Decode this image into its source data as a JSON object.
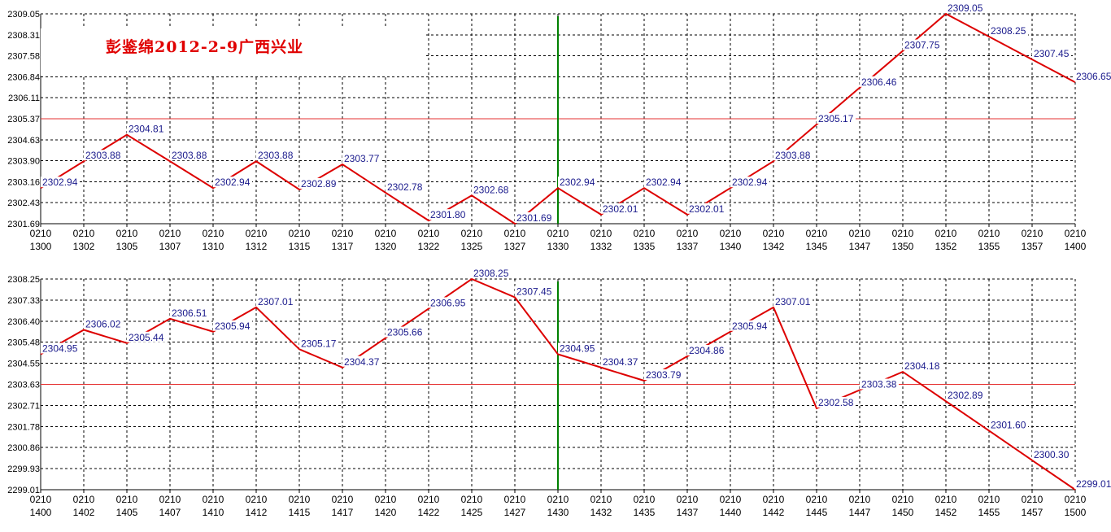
{
  "title": "彭鉴绵2012-2-9广西兴业",
  "colors": {
    "series": "#dd0000",
    "labels": "#1a1a8c",
    "grid": "#000000",
    "reference": "#e53030",
    "marker": "#008000"
  },
  "chart_data": [
    {
      "type": "line",
      "x": [
        "0210 1300",
        "0210 1302",
        "0210 1305",
        "0210 1307",
        "0210 1310",
        "0210 1312",
        "0210 1315",
        "0210 1317",
        "0210 1320",
        "0210 1322",
        "0210 1325",
        "0210 1327",
        "0210 1330",
        "0210 1332",
        "0210 1335",
        "0210 1337",
        "0210 1340",
        "0210 1342",
        "0210 1345",
        "0210 1347",
        "0210 1350",
        "0210 1352",
        "0210 1355",
        "0210 1357",
        "0210 1400"
      ],
      "y_ticks": [
        "2309.05",
        "2308.31",
        "2307.58",
        "2306.84",
        "2306.11",
        "2305.37",
        "2304.63",
        "2303.90",
        "2303.16",
        "2302.43",
        "2301.69"
      ],
      "ylim": [
        2301.69,
        2309.05
      ],
      "points": [
        {
          "x": "0210 1300",
          "y": 2302.94,
          "label": "2302.94"
        },
        {
          "x": "0210 1302",
          "y": 2303.88,
          "label": "2303.88"
        },
        {
          "x": "0210 1305",
          "y": 2304.81,
          "label": "2304.81"
        },
        {
          "x": "0210 1307",
          "y": 2303.88,
          "label": "2303.88"
        },
        {
          "x": "0210 1310",
          "y": 2302.94,
          "label": "2302.94"
        },
        {
          "x": "0210 1312",
          "y": 2303.88,
          "label": "2303.88"
        },
        {
          "x": "0210 1315",
          "y": 2302.89,
          "label": "2302.89"
        },
        {
          "x": "0210 1317",
          "y": 2303.77,
          "label": "2303.77"
        },
        {
          "x": "0210 1320",
          "y": 2302.78,
          "label": "2302.78"
        },
        {
          "x": "0210 1322",
          "y": 2301.8,
          "label": "2301.80"
        },
        {
          "x": "0210 1325",
          "y": 2302.68,
          "label": "2302.68"
        },
        {
          "x": "0210 1327",
          "y": 2301.69,
          "label": "2301.69"
        },
        {
          "x": "0210 1330",
          "y": 2302.94,
          "label": "2302.94"
        },
        {
          "x": "0210 1332",
          "y": 2302.01,
          "label": "2302.01"
        },
        {
          "x": "0210 1335",
          "y": 2302.94,
          "label": "2302.94"
        },
        {
          "x": "0210 1337",
          "y": 2302.01,
          "label": "2302.01"
        },
        {
          "x": "0210 1340",
          "y": 2302.94,
          "label": "2302.94"
        },
        {
          "x": "0210 1342",
          "y": 2303.88,
          "label": "2303.88"
        },
        {
          "x": "0210 1345",
          "y": 2305.17,
          "label": "2305.17"
        },
        {
          "x": "0210 1347",
          "y": 2306.46,
          "label": "2306.46"
        },
        {
          "x": "0210 1350",
          "y": 2307.75,
          "label": "2307.75"
        },
        {
          "x": "0210 1352",
          "y": 2309.05,
          "label": "2309.05"
        },
        {
          "x": "0210 1355",
          "y": 2308.25,
          "label": "2308.25"
        },
        {
          "x": "0210 1357",
          "y": 2307.45,
          "label": "2307.45"
        },
        {
          "x": "0210 1400",
          "y": 2306.65,
          "label": "2306.65"
        }
      ],
      "reference_line_y": 2305.37,
      "marker_x": "0210 1330",
      "grid": true
    },
    {
      "type": "line",
      "x": [
        "0210 1400",
        "0210 1402",
        "0210 1405",
        "0210 1407",
        "0210 1410",
        "0210 1412",
        "0210 1415",
        "0210 1417",
        "0210 1420",
        "0210 1422",
        "0210 1425",
        "0210 1427",
        "0210 1430",
        "0210 1432",
        "0210 1435",
        "0210 1437",
        "0210 1440",
        "0210 1442",
        "0210 1445",
        "0210 1447",
        "0210 1450",
        "0210 1452",
        "0210 1455",
        "0210 1457",
        "0210 1500"
      ],
      "y_ticks": [
        "2308.25",
        "2307.33",
        "2306.40",
        "2305.48",
        "2304.55",
        "2303.63",
        "2302.71",
        "2301.78",
        "2300.86",
        "2299.93",
        "2299.01"
      ],
      "ylim": [
        2299.01,
        2308.25
      ],
      "points": [
        {
          "x": "0210 1400",
          "y": 2304.95,
          "label": "2304.95"
        },
        {
          "x": "0210 1402",
          "y": 2306.02,
          "label": "2306.02"
        },
        {
          "x": "0210 1405",
          "y": 2305.44,
          "label": "2305.44"
        },
        {
          "x": "0210 1407",
          "y": 2306.51,
          "label": "2306.51"
        },
        {
          "x": "0210 1410",
          "y": 2305.94,
          "label": "2305.94"
        },
        {
          "x": "0210 1412",
          "y": 2307.01,
          "label": "2307.01"
        },
        {
          "x": "0210 1415",
          "y": 2305.17,
          "label": "2305.17"
        },
        {
          "x": "0210 1417",
          "y": 2304.37,
          "label": "2304.37"
        },
        {
          "x": "0210 1420",
          "y": 2305.66,
          "label": "2305.66"
        },
        {
          "x": "0210 1422",
          "y": 2306.95,
          "label": "2306.95"
        },
        {
          "x": "0210 1425",
          "y": 2308.25,
          "label": "2308.25"
        },
        {
          "x": "0210 1427",
          "y": 2307.45,
          "label": "2307.45"
        },
        {
          "x": "0210 1430",
          "y": 2304.95,
          "label": "2304.95"
        },
        {
          "x": "0210 1432",
          "y": 2304.37,
          "label": "2304.37"
        },
        {
          "x": "0210 1435",
          "y": 2303.79,
          "label": "2303.79"
        },
        {
          "x": "0210 1437",
          "y": 2304.86,
          "label": "2304.86"
        },
        {
          "x": "0210 1440",
          "y": 2305.94,
          "label": "2305.94"
        },
        {
          "x": "0210 1442",
          "y": 2307.01,
          "label": "2307.01"
        },
        {
          "x": "0210 1445",
          "y": 2302.58,
          "label": "2302.58"
        },
        {
          "x": "0210 1447",
          "y": 2303.38,
          "label": "2303.38"
        },
        {
          "x": "0210 1450",
          "y": 2304.18,
          "label": "2304.18"
        },
        {
          "x": "0210 1452",
          "y": 2302.89,
          "label": "2302.89"
        },
        {
          "x": "0210 1455",
          "y": 2301.6,
          "label": "2301.60"
        },
        {
          "x": "0210 1457",
          "y": 2300.3,
          "label": "2300.30"
        },
        {
          "x": "0210 1500",
          "y": 2299.01,
          "label": "2299.01"
        }
      ],
      "reference_line_y": 2303.63,
      "marker_x": "0210 1430",
      "grid": true
    }
  ]
}
